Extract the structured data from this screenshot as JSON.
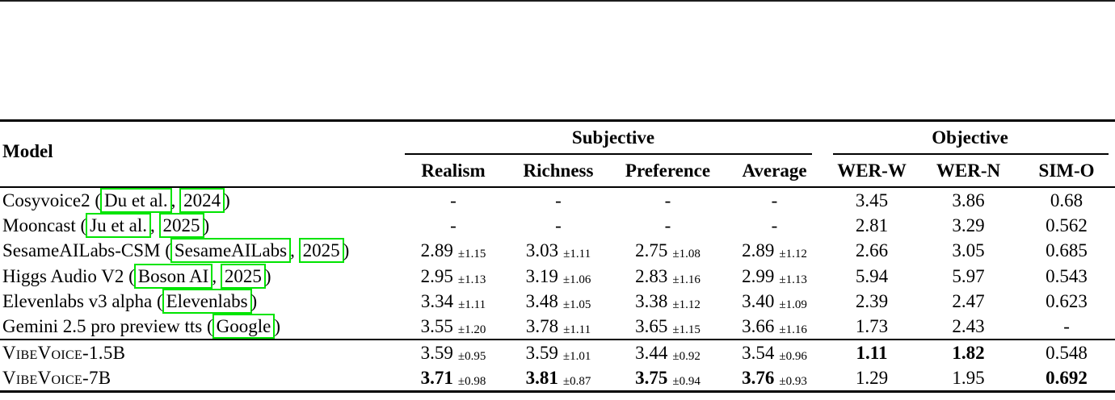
{
  "page": {
    "top_rule_color": "#1c1c1c",
    "background": "#ffffff",
    "link_box_color": "#00e400"
  },
  "table": {
    "header": {
      "model_label": "Model",
      "groups": [
        {
          "label": "Subjective",
          "columns_spanned": 4
        },
        {
          "label": "Objective",
          "columns_spanned": 3
        }
      ],
      "columns": [
        "Realism",
        "Richness",
        "Preference",
        "Average",
        "WER-W",
        "WER-N",
        "SIM-O"
      ]
    },
    "rows": [
      {
        "model": [
          {
            "t": "Cosyvoice2 ("
          },
          {
            "t": "Du et al.",
            "link": true
          },
          {
            "t": ", "
          },
          {
            "t": "2024",
            "link": true
          },
          {
            "t": ")"
          }
        ],
        "cells": [
          {
            "v": "-"
          },
          {
            "v": "-"
          },
          {
            "v": "-"
          },
          {
            "v": "-"
          },
          {
            "v": "3.45"
          },
          {
            "v": "3.86"
          },
          {
            "v": "0.68"
          }
        ]
      },
      {
        "model": [
          {
            "t": "Mooncast ("
          },
          {
            "t": "Ju et al.",
            "link": true
          },
          {
            "t": ", "
          },
          {
            "t": "2025",
            "link": true
          },
          {
            "t": ")"
          }
        ],
        "cells": [
          {
            "v": "-"
          },
          {
            "v": "-"
          },
          {
            "v": "-"
          },
          {
            "v": "-"
          },
          {
            "v": "2.81"
          },
          {
            "v": "3.29"
          },
          {
            "v": "0.562"
          }
        ]
      },
      {
        "model": [
          {
            "t": "SesameAILabs-CSM ("
          },
          {
            "t": "SesameAILabs",
            "link": true
          },
          {
            "t": ", "
          },
          {
            "t": "2025",
            "link": true
          },
          {
            "t": ")"
          }
        ],
        "cells": [
          {
            "v": "2.89",
            "pm": "1.15"
          },
          {
            "v": "3.03",
            "pm": "1.11"
          },
          {
            "v": "2.75",
            "pm": "1.08"
          },
          {
            "v": "2.89",
            "pm": "1.12"
          },
          {
            "v": "2.66"
          },
          {
            "v": "3.05"
          },
          {
            "v": "0.685"
          }
        ]
      },
      {
        "model": [
          {
            "t": "Higgs Audio V2 ("
          },
          {
            "t": "Boson AI",
            "link": true
          },
          {
            "t": ", "
          },
          {
            "t": "2025",
            "link": true
          },
          {
            "t": ")"
          }
        ],
        "cells": [
          {
            "v": "2.95",
            "pm": "1.13"
          },
          {
            "v": "3.19",
            "pm": "1.06"
          },
          {
            "v": "2.83",
            "pm": "1.16"
          },
          {
            "v": "2.99",
            "pm": "1.13"
          },
          {
            "v": "5.94"
          },
          {
            "v": "5.97"
          },
          {
            "v": "0.543"
          }
        ]
      },
      {
        "model": [
          {
            "t": "Elevenlabs v3 alpha ("
          },
          {
            "t": "Elevenlabs",
            "link": true
          },
          {
            "t": ")"
          }
        ],
        "cells": [
          {
            "v": "3.34",
            "pm": "1.11"
          },
          {
            "v": "3.48",
            "pm": "1.05"
          },
          {
            "v": "3.38",
            "pm": "1.12"
          },
          {
            "v": "3.40",
            "pm": "1.09"
          },
          {
            "v": "2.39"
          },
          {
            "v": "2.47"
          },
          {
            "v": "0.623"
          }
        ]
      },
      {
        "model": [
          {
            "t": "Gemini 2.5 pro preview tts ("
          },
          {
            "t": "Google",
            "link": true
          },
          {
            "t": ")"
          }
        ],
        "cells": [
          {
            "v": "3.55",
            "pm": "1.20"
          },
          {
            "v": "3.78",
            "pm": "1.11"
          },
          {
            "v": "3.65",
            "pm": "1.15"
          },
          {
            "v": "3.66",
            "pm": "1.16"
          },
          {
            "v": "1.73"
          },
          {
            "v": "2.43"
          },
          {
            "v": "-"
          }
        ]
      },
      {
        "rule_above": true,
        "ours": true,
        "model": [
          {
            "t": "VibeVoice-1.5B",
            "smallcaps": true
          }
        ],
        "cells": [
          {
            "v": "3.59",
            "pm": "0.95"
          },
          {
            "v": "3.59",
            "pm": "1.01"
          },
          {
            "v": "3.44",
            "pm": "0.92"
          },
          {
            "v": "3.54",
            "pm": "0.96"
          },
          {
            "v": "1.11",
            "bold": true
          },
          {
            "v": "1.82",
            "bold": true
          },
          {
            "v": "0.548"
          }
        ]
      },
      {
        "ours": true,
        "model": [
          {
            "t": "VibeVoice-7B",
            "smallcaps": true
          }
        ],
        "cells": [
          {
            "v": "3.71",
            "pm": "0.98",
            "bold": true
          },
          {
            "v": "3.81",
            "pm": "0.87",
            "bold": true
          },
          {
            "v": "3.75",
            "pm": "0.94",
            "bold": true
          },
          {
            "v": "3.76",
            "pm": "0.93",
            "bold": true
          },
          {
            "v": "1.29"
          },
          {
            "v": "1.95"
          },
          {
            "v": "0.692",
            "bold": true
          }
        ]
      }
    ]
  }
}
